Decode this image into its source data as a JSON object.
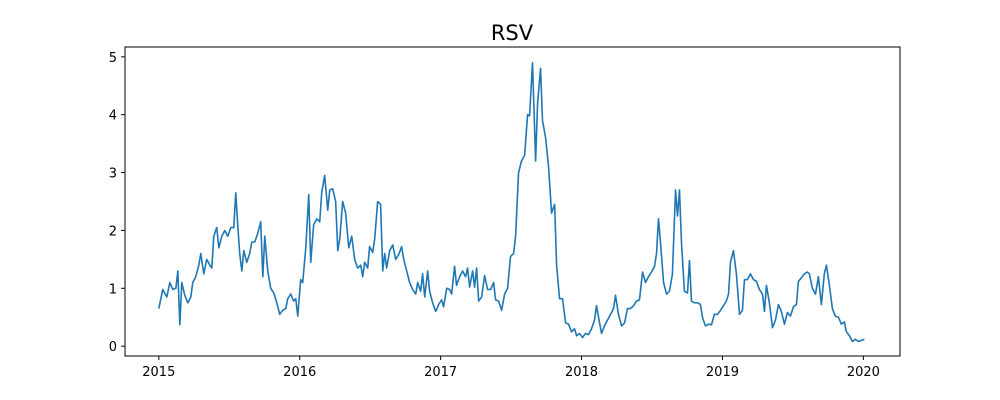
{
  "chart_data": {
    "type": "line",
    "title": "RSV",
    "xlim": [
      2014.76,
      2020.26
    ],
    "ylim": [
      -0.17,
      5.17
    ],
    "xticks": [
      2015,
      2016,
      2017,
      2018,
      2019,
      2020
    ],
    "yticks": [
      0,
      1,
      2,
      3,
      4,
      5
    ],
    "x": [
      2015.0,
      2015.028,
      2015.057,
      2015.078,
      2015.099,
      2015.121,
      2015.135,
      2015.149,
      2015.163,
      2015.184,
      2015.206,
      2015.227,
      2015.241,
      2015.262,
      2015.284,
      2015.298,
      2015.319,
      2015.34,
      2015.362,
      2015.376,
      2015.39,
      2015.411,
      2015.426,
      2015.447,
      2015.468,
      2015.489,
      2015.511,
      2015.532,
      2015.546,
      2015.56,
      2015.574,
      2015.589,
      2015.603,
      2015.624,
      2015.645,
      2015.66,
      2015.681,
      2015.702,
      2015.723,
      2015.738,
      2015.752,
      2015.773,
      2015.794,
      2015.816,
      2015.837,
      2015.858,
      2015.879,
      2015.901,
      2015.915,
      2015.936,
      2015.957,
      2015.972,
      2015.986,
      2016.007,
      2016.021,
      2016.043,
      2016.064,
      2016.078,
      2016.099,
      2016.121,
      2016.142,
      2016.156,
      2016.177,
      2016.199,
      2016.213,
      2016.234,
      2016.255,
      2016.27,
      2016.284,
      2016.305,
      2016.326,
      2016.348,
      2016.369,
      2016.39,
      2016.411,
      2016.433,
      2016.447,
      2016.461,
      2016.482,
      2016.496,
      2016.518,
      2016.532,
      2016.553,
      2016.574,
      2016.589,
      2016.603,
      2016.617,
      2016.638,
      2016.66,
      2016.681,
      2016.702,
      2016.723,
      2016.738,
      2016.759,
      2016.78,
      2016.801,
      2016.823,
      2016.837,
      2016.858,
      2016.872,
      2016.887,
      2016.908,
      2016.922,
      2016.943,
      2016.965,
      2016.986,
      2017.007,
      2017.021,
      2017.043,
      2017.064,
      2017.078,
      2017.099,
      2017.113,
      2017.135,
      2017.156,
      2017.177,
      2017.191,
      2017.206,
      2017.227,
      2017.241,
      2017.255,
      2017.27,
      2017.291,
      2017.312,
      2017.333,
      2017.355,
      2017.376,
      2017.39,
      2017.411,
      2017.433,
      2017.454,
      2017.475,
      2017.496,
      2017.518,
      2017.532,
      2017.553,
      2017.574,
      2017.596,
      2017.617,
      2017.631,
      2017.652,
      2017.674,
      2017.688,
      2017.709,
      2017.723,
      2017.745,
      2017.766,
      2017.787,
      2017.809,
      2017.823,
      2017.844,
      2017.865,
      2017.887,
      2017.908,
      2017.929,
      2017.95,
      2017.965,
      2017.986,
      2018.007,
      2018.028,
      2018.05,
      2018.071,
      2018.092,
      2018.106,
      2018.128,
      2018.142,
      2018.163,
      2018.184,
      2018.206,
      2018.227,
      2018.241,
      2018.262,
      2018.284,
      2018.305,
      2018.326,
      2018.348,
      2018.369,
      2018.39,
      2018.411,
      2018.433,
      2018.454,
      2018.475,
      2018.496,
      2018.518,
      2018.532,
      2018.546,
      2018.56,
      2018.582,
      2018.603,
      2018.624,
      2018.645,
      2018.667,
      2018.681,
      2018.695,
      2018.709,
      2018.73,
      2018.752,
      2018.766,
      2018.78,
      2018.801,
      2018.823,
      2018.844,
      2018.858,
      2018.879,
      2018.901,
      2018.922,
      2018.943,
      2018.965,
      2018.986,
      2019.007,
      2019.028,
      2019.043,
      2019.057,
      2019.078,
      2019.099,
      2019.121,
      2019.142,
      2019.156,
      2019.177,
      2019.199,
      2019.22,
      2019.241,
      2019.262,
      2019.284,
      2019.298,
      2019.312,
      2019.333,
      2019.355,
      2019.376,
      2019.397,
      2019.418,
      2019.44,
      2019.461,
      2019.482,
      2019.504,
      2019.525,
      2019.539,
      2019.56,
      2019.582,
      2019.603,
      2019.617,
      2019.638,
      2019.66,
      2019.681,
      2019.702,
      2019.723,
      2019.738,
      2019.759,
      2019.78,
      2019.801,
      2019.823,
      2019.844,
      2019.865,
      2019.879,
      2019.901,
      2019.922,
      2019.943,
      2019.965,
      2019.986,
      2020.007
    ],
    "series": [
      {
        "color": "#1f77b4",
        "values": [
          0.65,
          0.98,
          0.85,
          1.1,
          0.98,
          1.0,
          1.3,
          0.37,
          1.1,
          0.88,
          0.75,
          0.85,
          1.1,
          1.2,
          1.4,
          1.6,
          1.25,
          1.5,
          1.4,
          1.35,
          1.9,
          2.05,
          1.7,
          1.9,
          2.0,
          1.9,
          2.05,
          2.05,
          2.65,
          2.1,
          1.6,
          1.3,
          1.65,
          1.45,
          1.6,
          1.8,
          1.8,
          1.95,
          2.15,
          1.2,
          1.9,
          1.3,
          1.0,
          0.92,
          0.75,
          0.55,
          0.62,
          0.65,
          0.82,
          0.9,
          0.78,
          0.82,
          0.52,
          1.15,
          1.1,
          1.7,
          2.62,
          1.45,
          2.1,
          2.2,
          2.15,
          2.65,
          2.95,
          2.35,
          2.7,
          2.72,
          2.5,
          1.65,
          1.85,
          2.5,
          2.3,
          1.7,
          1.9,
          1.5,
          1.35,
          1.4,
          1.2,
          1.45,
          1.35,
          1.72,
          1.62,
          1.85,
          2.5,
          2.45,
          1.3,
          1.6,
          1.35,
          1.65,
          1.75,
          1.5,
          1.58,
          1.72,
          1.5,
          1.3,
          1.1,
          0.98,
          0.9,
          1.1,
          0.95,
          1.25,
          0.85,
          1.3,
          0.95,
          0.75,
          0.6,
          0.72,
          0.8,
          0.68,
          1.0,
          0.98,
          0.9,
          1.38,
          1.05,
          1.2,
          1.3,
          1.2,
          1.35,
          1.02,
          1.3,
          1.02,
          1.35,
          0.78,
          0.85,
          1.22,
          0.98,
          0.98,
          1.1,
          0.8,
          0.78,
          0.62,
          0.9,
          1.0,
          1.55,
          1.6,
          1.9,
          3.0,
          3.2,
          3.3,
          4.0,
          3.98,
          4.9,
          3.2,
          4.2,
          4.8,
          3.9,
          3.6,
          3.1,
          2.3,
          2.45,
          1.4,
          0.82,
          0.82,
          0.4,
          0.38,
          0.25,
          0.3,
          0.18,
          0.22,
          0.15,
          0.22,
          0.2,
          0.3,
          0.45,
          0.7,
          0.4,
          0.22,
          0.35,
          0.45,
          0.55,
          0.65,
          0.88,
          0.55,
          0.35,
          0.4,
          0.65,
          0.65,
          0.7,
          0.78,
          0.8,
          1.28,
          1.1,
          1.2,
          1.28,
          1.38,
          1.6,
          2.2,
          1.8,
          1.1,
          0.9,
          0.95,
          1.25,
          2.7,
          2.25,
          2.7,
          1.8,
          0.95,
          0.92,
          1.48,
          0.78,
          0.75,
          0.75,
          0.72,
          0.5,
          0.35,
          0.38,
          0.37,
          0.55,
          0.55,
          0.62,
          0.7,
          0.78,
          0.9,
          1.45,
          1.65,
          1.25,
          0.55,
          0.62,
          1.15,
          1.15,
          1.25,
          1.15,
          1.12,
          0.98,
          0.9,
          0.6,
          1.05,
          0.75,
          0.32,
          0.45,
          0.72,
          0.6,
          0.38,
          0.58,
          0.52,
          0.68,
          0.72,
          1.12,
          1.18,
          1.25,
          1.28,
          1.25,
          1.0,
          0.9,
          1.2,
          0.72,
          1.25,
          1.4,
          1.05,
          0.65,
          0.52,
          0.5,
          0.38,
          0.42,
          0.25,
          0.18,
          0.08,
          0.12,
          0.08,
          0.1,
          0.12
        ]
      }
    ]
  }
}
